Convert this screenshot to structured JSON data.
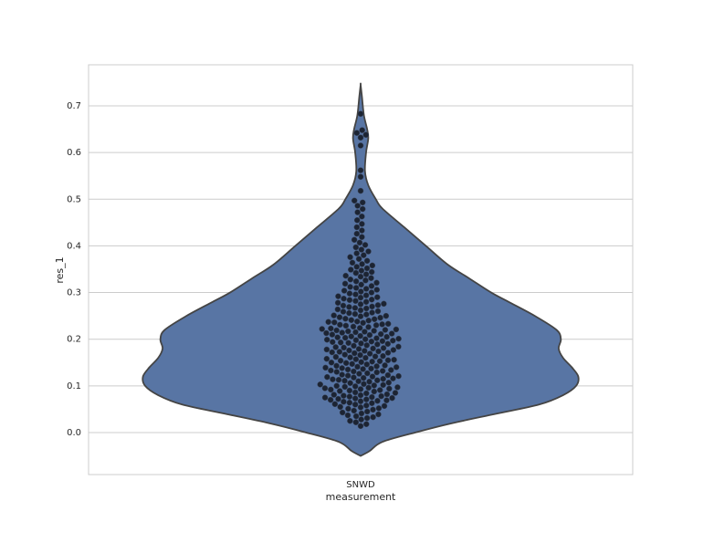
{
  "chart_data": {
    "type": "violin",
    "xlabel": "measurement",
    "ylabel": "res_1",
    "categories": [
      "SNWD"
    ],
    "ylim": [
      -0.09,
      0.788
    ],
    "yticks": [
      {
        "value": 0,
        "label": "0.0"
      },
      0.1,
      0.2,
      0.3,
      0.4,
      0.5,
      0.6,
      0.7
    ],
    "grid": true,
    "violin": {
      "color": "#5875a4",
      "edgecolor": "#444444",
      "y": [
        -0.05,
        -0.04,
        -0.02,
        0.0,
        0.02,
        0.04,
        0.06,
        0.08,
        0.1,
        0.12,
        0.14,
        0.16,
        0.18,
        0.2,
        0.22,
        0.25,
        0.28,
        0.3,
        0.33,
        0.36,
        0.4,
        0.44,
        0.48,
        0.5,
        0.53,
        0.56,
        0.6,
        0.63,
        0.65,
        0.68,
        0.72,
        0.745
      ],
      "density": [
        0,
        0.04,
        0.1,
        0.25,
        0.42,
        0.62,
        0.82,
        0.93,
        0.99,
        1.0,
        0.97,
        0.93,
        0.91,
        0.92,
        0.9,
        0.8,
        0.68,
        0.6,
        0.5,
        0.4,
        0.3,
        0.2,
        0.1,
        0.07,
        0.035,
        0.02,
        0.025,
        0.035,
        0.03,
        0.015,
        0.006,
        0
      ]
    },
    "swarm": {
      "color": "#1c2433",
      "values": [
        0.014,
        0.018,
        0.022,
        0.025,
        0.028,
        0.031,
        0.033,
        0.035,
        0.037,
        0.039,
        0.041,
        0.043,
        0.045,
        0.047,
        0.049,
        0.051,
        0.052,
        0.054,
        0.055,
        0.057,
        0.058,
        0.06,
        0.061,
        0.063,
        0.064,
        0.066,
        0.067,
        0.068,
        0.069,
        0.07,
        0.071,
        0.072,
        0.073,
        0.074,
        0.075,
        0.076,
        0.077,
        0.078,
        0.079,
        0.08,
        0.081,
        0.082,
        0.084,
        0.085,
        0.086,
        0.088,
        0.089,
        0.09,
        0.091,
        0.092,
        0.093,
        0.094,
        0.095,
        0.096,
        0.097,
        0.098,
        0.099,
        0.1,
        0.101,
        0.102,
        0.103,
        0.104,
        0.106,
        0.107,
        0.109,
        0.11,
        0.111,
        0.112,
        0.113,
        0.114,
        0.115,
        0.116,
        0.117,
        0.118,
        0.119,
        0.12,
        0.121,
        0.122,
        0.123,
        0.124,
        0.126,
        0.127,
        0.129,
        0.13,
        0.131,
        0.132,
        0.133,
        0.134,
        0.135,
        0.136,
        0.137,
        0.138,
        0.139,
        0.14,
        0.141,
        0.142,
        0.143,
        0.144,
        0.146,
        0.147,
        0.149,
        0.15,
        0.151,
        0.152,
        0.153,
        0.154,
        0.155,
        0.156,
        0.157,
        0.158,
        0.16,
        0.161,
        0.162,
        0.163,
        0.164,
        0.166,
        0.167,
        0.169,
        0.17,
        0.171,
        0.172,
        0.173,
        0.174,
        0.175,
        0.176,
        0.177,
        0.178,
        0.179,
        0.18,
        0.181,
        0.182,
        0.183,
        0.184,
        0.186,
        0.187,
        0.189,
        0.19,
        0.191,
        0.192,
        0.193,
        0.194,
        0.195,
        0.196,
        0.197,
        0.198,
        0.199,
        0.2,
        0.201,
        0.202,
        0.203,
        0.204,
        0.205,
        0.206,
        0.207,
        0.209,
        0.21,
        0.211,
        0.212,
        0.213,
        0.214,
        0.215,
        0.216,
        0.217,
        0.218,
        0.219,
        0.22,
        0.221,
        0.222,
        0.223,
        0.224,
        0.226,
        0.227,
        0.229,
        0.23,
        0.231,
        0.232,
        0.233,
        0.235,
        0.236,
        0.237,
        0.238,
        0.24,
        0.241,
        0.243,
        0.244,
        0.246,
        0.247,
        0.249,
        0.25,
        0.251,
        0.253,
        0.254,
        0.256,
        0.257,
        0.259,
        0.26,
        0.262,
        0.264,
        0.266,
        0.267,
        0.269,
        0.27,
        0.272,
        0.273,
        0.275,
        0.276,
        0.278,
        0.28,
        0.282,
        0.284,
        0.285,
        0.287,
        0.289,
        0.29,
        0.292,
        0.294,
        0.296,
        0.298,
        0.3,
        0.302,
        0.304,
        0.306,
        0.308,
        0.31,
        0.312,
        0.314,
        0.317,
        0.319,
        0.321,
        0.324,
        0.326,
        0.328,
        0.331,
        0.334,
        0.336,
        0.339,
        0.342,
        0.344,
        0.347,
        0.349,
        0.352,
        0.355,
        0.358,
        0.361,
        0.364,
        0.368,
        0.372,
        0.376,
        0.38,
        0.384,
        0.388,
        0.392,
        0.397,
        0.402,
        0.407,
        0.413,
        0.419,
        0.426,
        0.433,
        0.44,
        0.447,
        0.455,
        0.463,
        0.472,
        0.479,
        0.486,
        0.493,
        0.497,
        0.518,
        0.548,
        0.562,
        0.615,
        0.632,
        0.638,
        0.642,
        0.648,
        0.683
      ]
    }
  }
}
